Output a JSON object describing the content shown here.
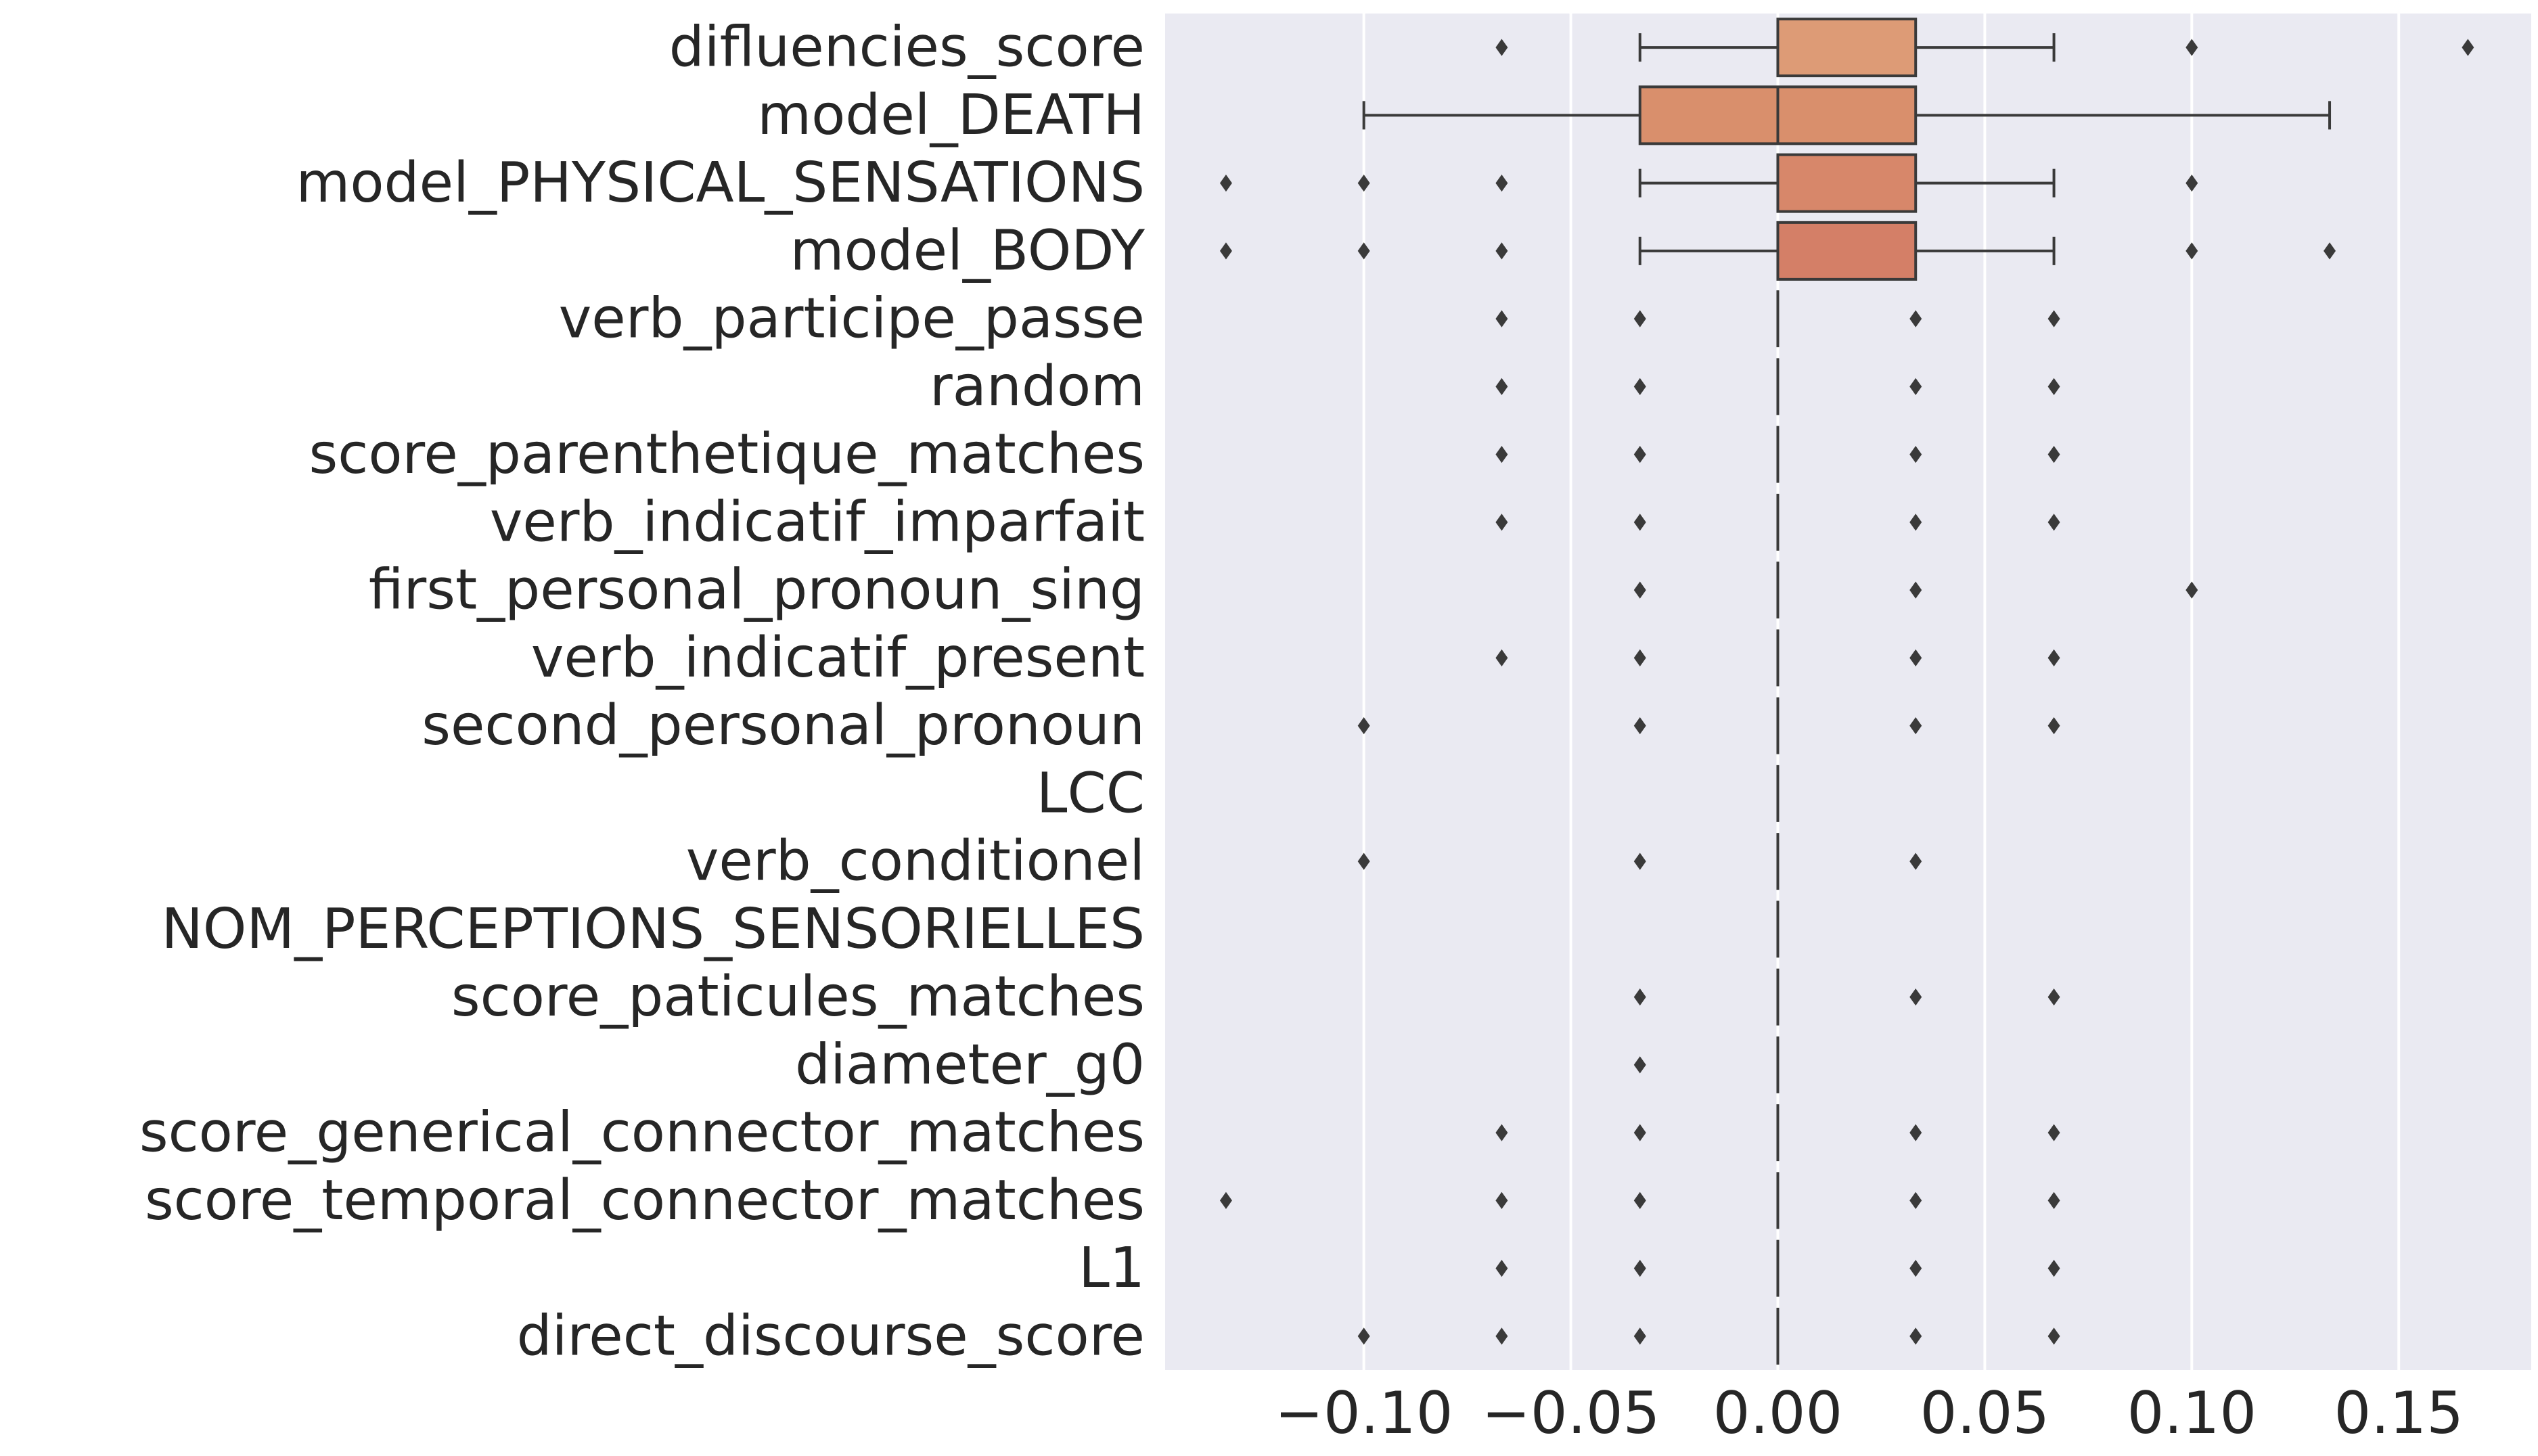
{
  "chart_data": {
    "type": "boxplot",
    "orientation": "horizontal",
    "categories": [
      "difluencies_score",
      "model_DEATH",
      "model_PHYSICAL_SENSATIONS",
      "model_BODY",
      "verb_participe_passe",
      "random",
      "score_parenthetique_matches",
      "verb_indicatif_imparfait",
      "first_personal_pronoun_sing",
      "verb_indicatif_present",
      "second_personal_pronoun",
      "LCC",
      "verb_conditionel",
      "NOM_PERCEPTIONS_SENSORIELLES",
      "score_paticules_matches",
      "diameter_g0",
      "score_generical_connector_matches",
      "score_temporal_connector_matches",
      "L1",
      "direct_discourse_score"
    ],
    "boxes": [
      {
        "q1": 0.0,
        "median": 0.0,
        "q3": 0.0333,
        "whisker_low": -0.0333,
        "whisker_high": 0.0667,
        "fliers": [
          -0.0667,
          0.1,
          0.1667
        ],
        "color": "#dd9b76"
      },
      {
        "q1": -0.0333,
        "median": 0.0,
        "q3": 0.0333,
        "whisker_low": -0.1,
        "whisker_high": 0.1333,
        "fliers": [],
        "color": "#d98f6c"
      },
      {
        "q1": 0.0,
        "median": 0.0,
        "q3": 0.0333,
        "whisker_low": -0.0333,
        "whisker_high": 0.0667,
        "fliers": [
          -0.1333,
          -0.1,
          -0.0667,
          0.1
        ],
        "color": "#d7876a"
      },
      {
        "q1": 0.0,
        "median": 0.0,
        "q3": 0.0333,
        "whisker_low": -0.0333,
        "whisker_high": 0.0667,
        "fliers": [
          -0.1333,
          -0.1,
          -0.0667,
          0.1,
          0.1333
        ],
        "color": "#d47f67"
      },
      {
        "q1": 0.0,
        "median": 0.0,
        "q3": 0.0,
        "whisker_low": 0.0,
        "whisker_high": 0.0,
        "fliers": [
          -0.0667,
          -0.0333,
          0.0333,
          0.0667
        ],
        "color": "#d07a64"
      },
      {
        "q1": 0.0,
        "median": 0.0,
        "q3": 0.0,
        "whisker_low": 0.0,
        "whisker_high": 0.0,
        "fliers": [
          -0.0667,
          -0.0333,
          0.0333,
          0.0667
        ],
        "color": "#cc7462"
      },
      {
        "q1": 0.0,
        "median": 0.0,
        "q3": 0.0,
        "whisker_low": 0.0,
        "whisker_high": 0.0,
        "fliers": [
          -0.0667,
          -0.0333,
          0.0333,
          0.0667
        ],
        "color": "#c86f60"
      },
      {
        "q1": 0.0,
        "median": 0.0,
        "q3": 0.0,
        "whisker_low": 0.0,
        "whisker_high": 0.0,
        "fliers": [
          -0.0667,
          -0.0333,
          0.0333,
          0.0667
        ],
        "color": "#c36a5e"
      },
      {
        "q1": 0.0,
        "median": 0.0,
        "q3": 0.0,
        "whisker_low": 0.0,
        "whisker_high": 0.0,
        "fliers": [
          -0.0333,
          0.0333,
          0.1
        ],
        "color": "#be665d"
      },
      {
        "q1": 0.0,
        "median": 0.0,
        "q3": 0.0,
        "whisker_low": 0.0,
        "whisker_high": 0.0,
        "fliers": [
          -0.0667,
          -0.0333,
          0.0333,
          0.0667
        ],
        "color": "#b9625c"
      },
      {
        "q1": 0.0,
        "median": 0.0,
        "q3": 0.0,
        "whisker_low": 0.0,
        "whisker_high": 0.0,
        "fliers": [
          -0.1,
          -0.0333,
          0.0333,
          0.0667
        ],
        "color": "#b35e5b"
      },
      {
        "q1": 0.0,
        "median": 0.0,
        "q3": 0.0,
        "whisker_low": 0.0,
        "whisker_high": 0.0,
        "fliers": [],
        "color": "#ad5a5a"
      },
      {
        "q1": 0.0,
        "median": 0.0,
        "q3": 0.0,
        "whisker_low": 0.0,
        "whisker_high": 0.0,
        "fliers": [
          -0.1,
          -0.0333,
          0.0333
        ],
        "color": "#a75759"
      },
      {
        "q1": 0.0,
        "median": 0.0,
        "q3": 0.0,
        "whisker_low": 0.0,
        "whisker_high": 0.0,
        "fliers": [],
        "color": "#a05458"
      },
      {
        "q1": 0.0,
        "median": 0.0,
        "q3": 0.0,
        "whisker_low": 0.0,
        "whisker_high": 0.0,
        "fliers": [
          -0.0333,
          0.0333,
          0.0667
        ],
        "color": "#995157"
      },
      {
        "q1": 0.0,
        "median": 0.0,
        "q3": 0.0,
        "whisker_low": 0.0,
        "whisker_high": 0.0,
        "fliers": [
          -0.0333
        ],
        "color": "#924e56"
      },
      {
        "q1": 0.0,
        "median": 0.0,
        "q3": 0.0,
        "whisker_low": 0.0,
        "whisker_high": 0.0,
        "fliers": [
          -0.0667,
          -0.0333,
          0.0333,
          0.0667
        ],
        "color": "#8b4c55"
      },
      {
        "q1": 0.0,
        "median": 0.0,
        "q3": 0.0,
        "whisker_low": 0.0,
        "whisker_high": 0.0,
        "fliers": [
          -0.1333,
          -0.0667,
          -0.0333,
          0.0333,
          0.0667
        ],
        "color": "#844954"
      },
      {
        "q1": 0.0,
        "median": 0.0,
        "q3": 0.0,
        "whisker_low": 0.0,
        "whisker_high": 0.0,
        "fliers": [
          -0.0667,
          -0.0333,
          0.0333,
          0.0667
        ],
        "color": "#7d4753"
      },
      {
        "q1": 0.0,
        "median": 0.0,
        "q3": 0.0,
        "whisker_low": 0.0,
        "whisker_high": 0.0,
        "fliers": [
          -0.1,
          -0.0667,
          -0.0333,
          0.0333,
          0.0667
        ],
        "color": "#764552"
      }
    ],
    "x_ticks": [
      -0.1,
      -0.05,
      0.0,
      0.05,
      0.1,
      0.15
    ],
    "x_tick_labels": [
      "−0.10",
      "−0.05",
      "0.00",
      "0.05",
      "0.10",
      "0.15"
    ],
    "xlim": [
      -0.148,
      0.182
    ],
    "title": "",
    "xlabel": "",
    "ylabel": "",
    "grid": true,
    "background": "#eaeaf2",
    "grid_color": "#ffffff",
    "line_color": "#3a3a3a",
    "text_color": "#262626"
  }
}
